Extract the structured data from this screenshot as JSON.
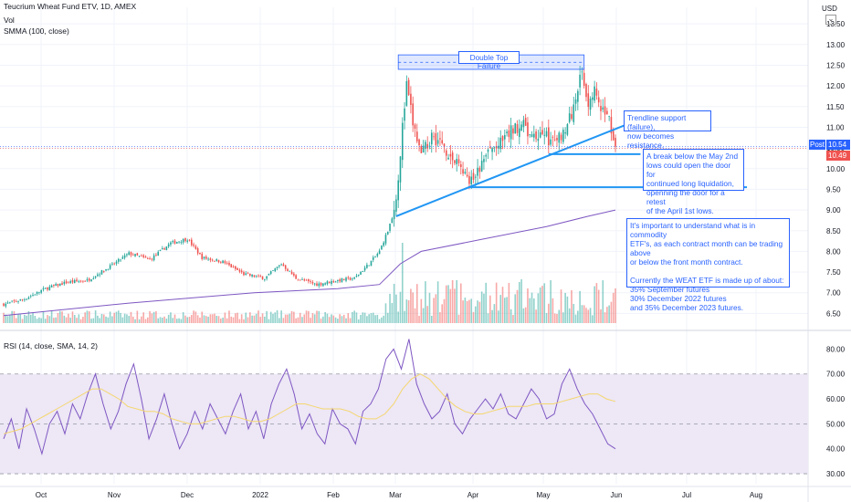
{
  "header": {
    "symbol_line": "Teucrium Wheat Fund ETV, 1D, AMEX",
    "vol_label": "Vol",
    "smma_label": "SMMA (100, close)",
    "rsi_label": "RSI (14, close, SMA, 14, 2)",
    "currency": "USD"
  },
  "badges": {
    "post_label": "Post",
    "post_price": "10.54",
    "last_price": "10.49"
  },
  "annotations": {
    "double_top": "Double Top Failure",
    "trendline": [
      "Trendline support (failure),",
      "now becomes resistance."
    ],
    "break_below": [
      "A break below the May 2nd",
      "lows could open the door for",
      "continued long liquidation,",
      "openning the door for a retest",
      "of the April 1st lows."
    ],
    "etf_note": [
      "It's important to understand what is in commodity",
      "ETF's, as each contract month can be trading above",
      "or below the front month contract.",
      "",
      "Currently the WEAT ETF is made up of about:",
      "35% September futures",
      "30% December 2022 futures",
      "and 35% December 2023 futures."
    ]
  },
  "colors": {
    "up": "#26a69a",
    "down": "#ef5350",
    "smma": "#7e57c2",
    "rsi": "#7e57c2",
    "rsi_sma": "#f5d76e",
    "trendline": "#2196f3",
    "note_border": "#2962ff",
    "rsi_band": "#ede7f6",
    "post_badge": "#2962ff",
    "last_badge": "#ef5350"
  },
  "chart_data": [
    {
      "type": "candlestick",
      "title": "Teucrium Wheat Fund ETV, 1D, AMEX",
      "ylabel": "USD",
      "yticks": [
        6.5,
        7.0,
        7.5,
        8.0,
        8.5,
        9.0,
        9.5,
        10.0,
        10.5,
        11.0,
        11.5,
        12.0,
        12.5,
        13.0,
        13.5
      ],
      "ylim": [
        6.2,
        13.9
      ],
      "xticks": [
        "Oct",
        "Nov",
        "Dec",
        "2022",
        "Feb",
        "Mar",
        "Apr",
        "May",
        "Jun",
        "Jul",
        "Aug"
      ],
      "grid": true,
      "close_path": [
        [
          0,
          6.72
        ],
        [
          10,
          6.85
        ],
        [
          20,
          7.1
        ],
        [
          30,
          7.25
        ],
        [
          40,
          7.3
        ],
        [
          50,
          7.6
        ],
        [
          60,
          7.95
        ],
        [
          70,
          7.8
        ],
        [
          80,
          8.2
        ],
        [
          88,
          8.3
        ],
        [
          95,
          7.85
        ],
        [
          105,
          7.75
        ],
        [
          115,
          7.45
        ],
        [
          125,
          7.35
        ],
        [
          133,
          7.7
        ],
        [
          140,
          7.35
        ],
        [
          150,
          7.2
        ],
        [
          160,
          7.3
        ],
        [
          168,
          7.35
        ],
        [
          175,
          7.7
        ],
        [
          180,
          8.0
        ],
        [
          184,
          8.5
        ],
        [
          187,
          9.0
        ],
        [
          189,
          9.8
        ],
        [
          191,
          11.0
        ],
        [
          193,
          12.0
        ],
        [
          196,
          11.1
        ],
        [
          200,
          10.3
        ],
        [
          205,
          10.8
        ],
        [
          210,
          10.6
        ],
        [
          215,
          10.2
        ],
        [
          220,
          10.0
        ],
        [
          223,
          9.6
        ],
        [
          227,
          9.9
        ],
        [
          232,
          10.4
        ],
        [
          238,
          10.6
        ],
        [
          243,
          10.9
        ],
        [
          248,
          11.1
        ],
        [
          253,
          10.7
        ],
        [
          258,
          10.9
        ],
        [
          263,
          10.6
        ],
        [
          268,
          10.9
        ],
        [
          272,
          11.3
        ],
        [
          275,
          12.0
        ],
        [
          277,
          12.3
        ],
        [
          280,
          11.6
        ],
        [
          283,
          11.9
        ],
        [
          286,
          11.3
        ],
        [
          289,
          11.4
        ],
        [
          291,
          11.0
        ],
        [
          293,
          10.49
        ]
      ],
      "volume_peak_index": 191,
      "smma_path": [
        [
          0,
          6.45
        ],
        [
          60,
          6.75
        ],
        [
          120,
          7.0
        ],
        [
          160,
          7.1
        ],
        [
          180,
          7.2
        ],
        [
          190,
          7.7
        ],
        [
          200,
          8.0
        ],
        [
          230,
          8.3
        ],
        [
          260,
          8.6
        ],
        [
          280,
          8.85
        ],
        [
          293,
          9.0
        ]
      ],
      "annotations": [
        "Double Top Failure",
        "Trendline support (failure), now becomes resistance.",
        "A break below the May 2nd lows could open the door for continued long liquidation, openning the door for a retest of the April 1st lows."
      ],
      "last_value": 10.49,
      "post_value": 10.54
    },
    {
      "type": "line",
      "title": "RSI (14, close, SMA, 14, 2)",
      "yticks": [
        30.0,
        40.0,
        50.0,
        60.0,
        70.0,
        80.0
      ],
      "ylim": [
        26,
        86
      ],
      "bands": [
        30,
        70
      ],
      "midline": 50,
      "series": [
        {
          "name": "RSI",
          "values": [
            44,
            52,
            40,
            56,
            48,
            38,
            50,
            55,
            46,
            58,
            52,
            62,
            70,
            58,
            48,
            55,
            66,
            74,
            60,
            44,
            52,
            62,
            50,
            40,
            46,
            55,
            48,
            58,
            52,
            46,
            55,
            62,
            48,
            55,
            44,
            58,
            66,
            72,
            62,
            48,
            54,
            46,
            42,
            56,
            50,
            48,
            42,
            55,
            58,
            64,
            76,
            80,
            72,
            84,
            66,
            58,
            52,
            55,
            62,
            50,
            46,
            52,
            56,
            60,
            56,
            62,
            54,
            52,
            58,
            64,
            60,
            52,
            54,
            66,
            72,
            64,
            58,
            54,
            48,
            42,
            40
          ]
        },
        {
          "name": "SMA",
          "values": [
            46,
            47,
            48,
            50,
            52,
            54,
            56,
            58,
            60,
            62,
            64,
            64,
            62,
            60,
            57,
            56,
            55,
            55,
            54,
            52,
            51,
            50,
            50,
            51,
            52,
            53,
            53,
            52,
            51,
            51,
            52,
            54,
            56,
            58,
            58,
            57,
            56,
            56,
            56,
            55,
            53,
            52,
            52,
            54,
            58,
            64,
            68,
            70,
            68,
            64,
            60,
            57,
            55,
            54,
            54,
            55,
            56,
            57,
            57,
            57,
            58,
            58,
            58,
            59,
            60,
            61,
            62,
            62,
            60,
            59
          ]
        }
      ]
    }
  ]
}
